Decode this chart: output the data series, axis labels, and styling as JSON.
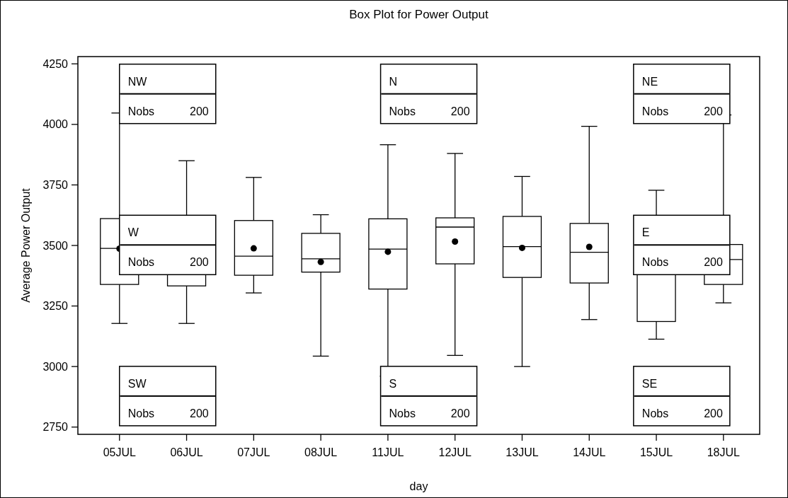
{
  "chart_data": {
    "type": "box",
    "title": "Box Plot for Power Output",
    "xlabel": "day",
    "ylabel": "Average Power Output",
    "categories": [
      "05JUL",
      "06JUL",
      "07JUL",
      "08JUL",
      "11JUL",
      "12JUL",
      "13JUL",
      "14JUL",
      "15JUL",
      "18JUL"
    ],
    "ylim": [
      2720,
      4280
    ],
    "yticks": [
      2750,
      3000,
      3250,
      3500,
      3750,
      4000,
      4250
    ],
    "series": [
      {
        "color": "#000000",
        "boxes": [
          {
            "low": 3178,
            "q1": 3339,
            "median": 3488,
            "q3": 3611,
            "high": 4047,
            "mean": 3487
          },
          {
            "low": 3178,
            "q1": 3333,
            "median": null,
            "q3": 3610,
            "high": 3850,
            "mean": null
          },
          {
            "low": 3304,
            "q1": 3377,
            "median": 3456,
            "q3": 3603,
            "high": 3781,
            "mean": 3488
          },
          {
            "low": 3043,
            "q1": 3390,
            "median": 3445,
            "q3": 3550,
            "high": 3627,
            "mean": 3432
          },
          {
            "low": 2960,
            "q1": 3320,
            "median": 3485,
            "q3": 3610,
            "high": 3916,
            "mean": 3474
          },
          {
            "low": 3046,
            "q1": 3424,
            "median": 3576,
            "q3": 3614,
            "high": 3880,
            "mean": 3516
          },
          {
            "low": 3000,
            "q1": 3368,
            "median": 3495,
            "q3": 3620,
            "high": 3785,
            "mean": 3490
          },
          {
            "low": 3194,
            "q1": 3345,
            "median": 3472,
            "q3": 3591,
            "high": 3992,
            "mean": 3494
          },
          {
            "low": 3113,
            "q1": 3186,
            "median": null,
            "q3": 3600,
            "high": 3728,
            "mean": null
          },
          {
            "low": 3263,
            "q1": 3339,
            "median": 3442,
            "q3": 3504,
            "high": 4039,
            "mean": 3453
          }
        ]
      }
    ],
    "annotations": [
      "NW",
      "Nobs 200",
      "N",
      "Nobs 200",
      "NE",
      "Nobs 200",
      "W",
      "Nobs 200",
      "E",
      "Nobs 200",
      "SW",
      "Nobs 200",
      "S",
      "Nobs 200",
      "SE",
      "Nobs 200"
    ]
  }
}
